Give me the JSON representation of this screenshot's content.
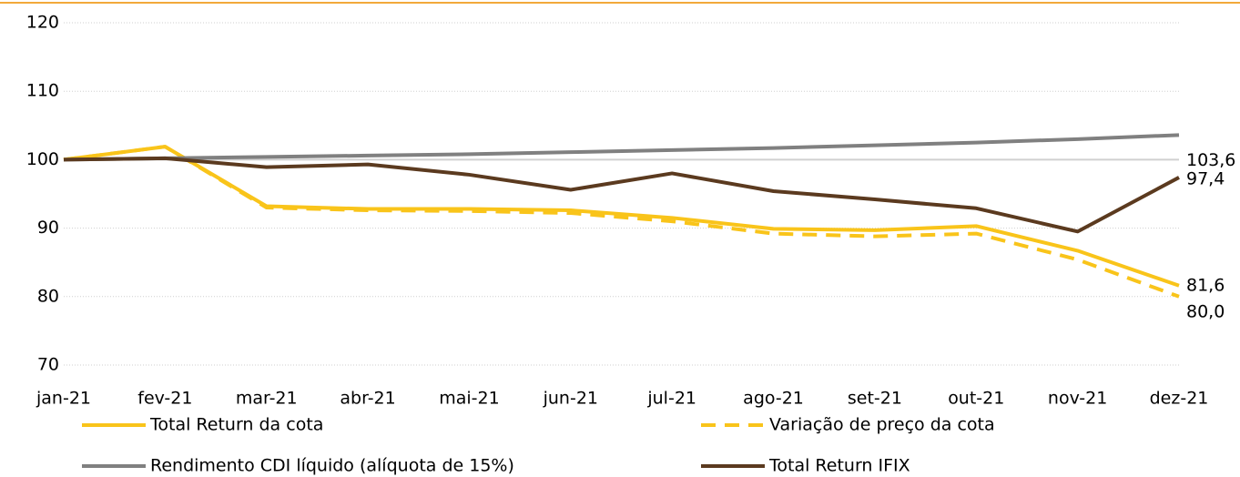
{
  "chart_data": {
    "type": "line",
    "categories": [
      "jan-21",
      "fev-21",
      "mar-21",
      "abr-21",
      "mai-21",
      "jun-21",
      "jul-21",
      "ago-21",
      "set-21",
      "out-21",
      "nov-21",
      "dez-21"
    ],
    "series": [
      {
        "name": "Total Return da cota",
        "color": "#f9c41a",
        "dashed": false,
        "values": [
          100,
          101.9,
          93.2,
          92.8,
          92.8,
          92.6,
          91.5,
          89.9,
          89.7,
          90.3,
          86.7,
          81.6
        ],
        "value_labels": [
          null,
          null,
          null,
          null,
          null,
          null,
          null,
          null,
          null,
          null,
          null,
          "81,6"
        ]
      },
      {
        "name": "Variação de preço da cota",
        "color": "#f9c41a",
        "dashed": true,
        "values": [
          100,
          101.9,
          93.0,
          92.6,
          92.5,
          92.2,
          91.0,
          89.2,
          88.8,
          89.2,
          85.4,
          80.0
        ],
        "value_labels": [
          null,
          null,
          null,
          null,
          null,
          null,
          null,
          null,
          null,
          null,
          null,
          "80,0"
        ]
      },
      {
        "name": "Rendimento CDI líquido (alíquota de 15%)",
        "color": "#808080",
        "dashed": false,
        "values": [
          100,
          100.2,
          100.4,
          100.6,
          100.8,
          101.1,
          101.4,
          101.7,
          102.1,
          102.5,
          103.0,
          103.6
        ],
        "value_labels": [
          null,
          null,
          null,
          null,
          null,
          null,
          null,
          null,
          null,
          null,
          null,
          "103,6"
        ]
      },
      {
        "name": "Total Return IFIX",
        "color": "#5b3a1f",
        "dashed": false,
        "values": [
          100,
          100.2,
          98.9,
          99.3,
          97.8,
          95.6,
          98.0,
          95.4,
          94.2,
          92.9,
          89.5,
          97.4
        ],
        "value_labels": [
          null,
          null,
          null,
          null,
          null,
          null,
          null,
          null,
          null,
          null,
          null,
          "97,4"
        ]
      }
    ],
    "ylim": [
      70,
      120
    ],
    "yticks": [
      70,
      80,
      90,
      100,
      110,
      120
    ],
    "baseline": 100,
    "grid": true,
    "legend": "bottom"
  }
}
